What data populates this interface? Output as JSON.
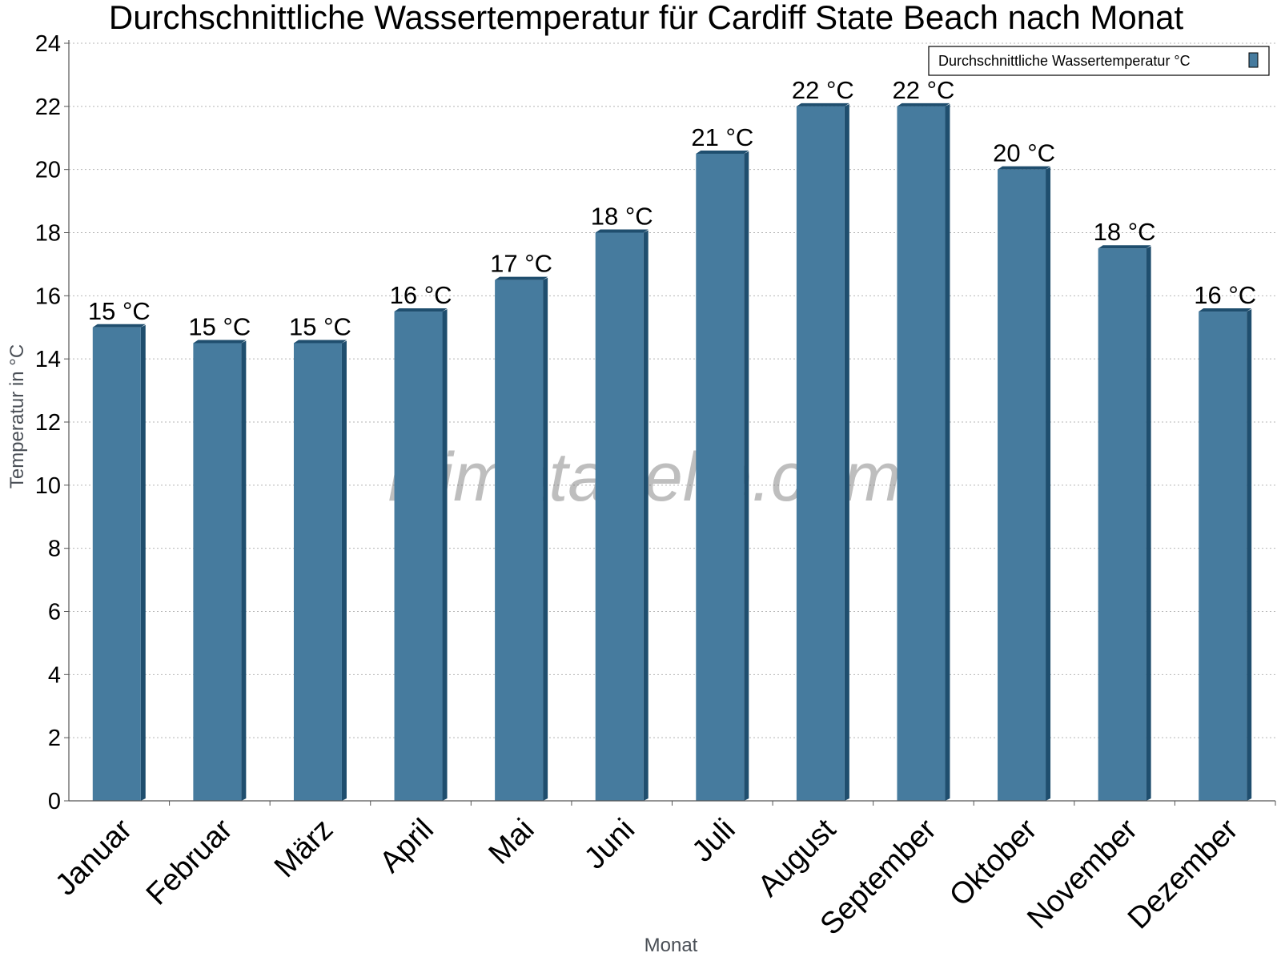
{
  "chart_data": {
    "type": "bar",
    "title": "Durchschnittliche Wassertemperatur für Cardiff State Beach nach Monat",
    "xlabel": "Monat",
    "ylabel": "Temperatur in °C",
    "categories": [
      "Januar",
      "Februar",
      "März",
      "April",
      "Mai",
      "Juni",
      "Juli",
      "August",
      "September",
      "Oktober",
      "November",
      "Dezember"
    ],
    "series": [
      {
        "name": "Durchschnittliche Wassertemperatur °C",
        "values": [
          15.0,
          14.5,
          14.5,
          15.5,
          16.5,
          18.0,
          20.5,
          22.0,
          22.0,
          20.0,
          17.5,
          15.5
        ],
        "data_labels": [
          "15 °C",
          "15 °C",
          "15 °C",
          "16 °C",
          "17 °C",
          "18 °C",
          "21 °C",
          "22 °C",
          "22 °C",
          "20 °C",
          "18 °C",
          "16 °C"
        ],
        "color": "#467b9e",
        "side_color": "#1f4e6e"
      }
    ],
    "ylim": [
      0,
      24
    ],
    "yticks": [
      0,
      2,
      4,
      6,
      8,
      10,
      12,
      14,
      16,
      18,
      20,
      22,
      24
    ],
    "grid": true,
    "legend_position": "top-right",
    "watermark": "klimatabelle.com"
  }
}
